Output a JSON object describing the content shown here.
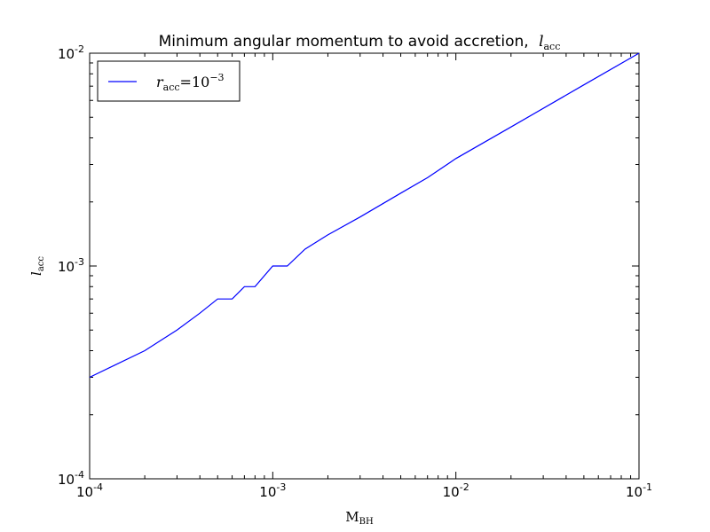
{
  "chart_data": {
    "type": "line",
    "title": "Minimum angular momentum to avoid accretion,",
    "title_symbol": "l",
    "title_symbol_sub": "acc",
    "xlabel": "M",
    "xlabel_sub": "BH",
    "ylabel": "l",
    "ylabel_sub": "acc",
    "x_scale": "log",
    "y_scale": "log",
    "xlim": [
      0.0001,
      0.1
    ],
    "ylim": [
      0.0001,
      0.01
    ],
    "x_ticks": [
      {
        "value": 0.0001,
        "base": "10",
        "exp": "-4"
      },
      {
        "value": 0.001,
        "base": "10",
        "exp": "-3"
      },
      {
        "value": 0.01,
        "base": "10",
        "exp": "-2"
      },
      {
        "value": 0.1,
        "base": "10",
        "exp": "-1"
      }
    ],
    "y_ticks": [
      {
        "value": 0.0001,
        "base": "10",
        "exp": "-4"
      },
      {
        "value": 0.001,
        "base": "10",
        "exp": "-3"
      },
      {
        "value": 0.01,
        "base": "10",
        "exp": "-2"
      }
    ],
    "grid": false,
    "legend_position": "top-left",
    "colors": {
      "series": "#0000ff",
      "axes": "#000000",
      "background": "#ffffff"
    },
    "series": [
      {
        "name": "r_acc = 10^-3",
        "legend_symbol": "r",
        "legend_symbol_sub": "acc",
        "legend_eq": "=10",
        "legend_exp": "−3",
        "x": [
          0.0001,
          0.0002,
          0.0003,
          0.0004,
          0.0005,
          0.0006,
          0.0007,
          0.0008,
          0.001,
          0.0012,
          0.0015,
          0.002,
          0.003,
          0.005,
          0.007,
          0.01,
          0.02,
          0.05,
          0.1
        ],
        "y": [
          0.0003,
          0.0004,
          0.0005,
          0.0006,
          0.0007,
          0.0007,
          0.0008,
          0.0008,
          0.001,
          0.001,
          0.0012,
          0.0014,
          0.0017,
          0.0022,
          0.0026,
          0.0032,
          0.0045,
          0.0071,
          0.01
        ]
      }
    ]
  }
}
